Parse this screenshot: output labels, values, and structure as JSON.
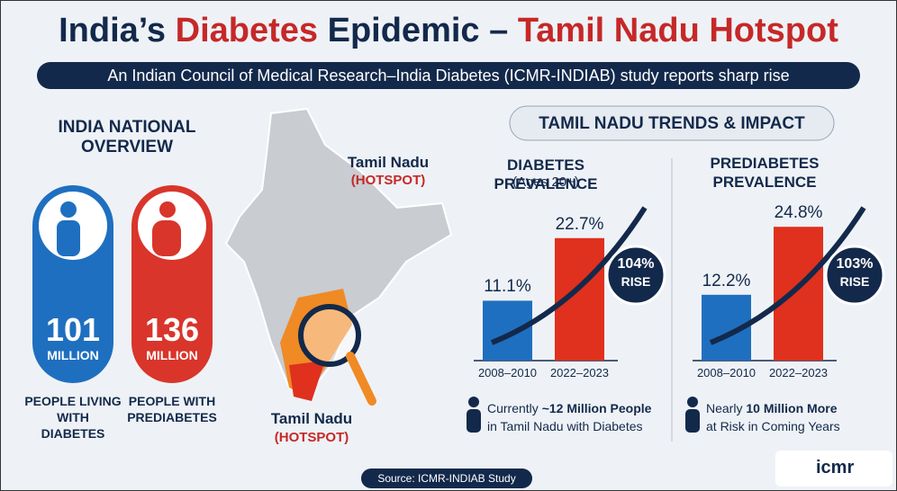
{
  "header": {
    "title_parts": [
      "India’s",
      "Diabetes",
      "Epidemic –",
      "Tamil Nadu Hotspot"
    ],
    "subtitle": "An Indian Council of Medical Research–India Diabetes (ICMR-INDIAB) study reports sharp rise"
  },
  "national": {
    "title": "INDIA NATIONAL OVERVIEW",
    "cards": [
      {
        "value": 101,
        "unit": "MILLION",
        "label": "PEOPLE LIVING WITH DIABETES"
      },
      {
        "value": 136,
        "unit": "MILLION",
        "label": "PEOPLE WITH PREDIABETES"
      }
    ]
  },
  "map": {
    "labels": [
      {
        "name": "Tamil Nadu",
        "tag": "(HOTSPOT)"
      },
      {
        "name": "Tamil Nadu",
        "tag": "(HOTSPOT)"
      }
    ]
  },
  "trends": {
    "title": "TAMIL NADU TRENDS & IMPACT",
    "charts": [
      {
        "title": "DIABETES PREVALENCE",
        "subtitle": "(Ages 20+)",
        "categories": [
          "2008–2010",
          "2022–2023"
        ],
        "values": [
          11.1,
          22.7
        ],
        "value_labels": [
          "11.1%",
          "22.7%"
        ],
        "colors": [
          "#1f6fc0",
          "#e0301e"
        ],
        "rise": "104%",
        "rise_label": "RISE",
        "note_parts": [
          "Currently",
          "~12 Million People",
          "in Tamil Nadu with Diabetes"
        ]
      },
      {
        "title": "PREDIABETES PREVALENCE",
        "categories": [
          "2008–2010",
          "2022–2023"
        ],
        "values": [
          12.2,
          24.8
        ],
        "value_labels": [
          "12.2%",
          "24.8%"
        ],
        "colors": [
          "#1f6fc0",
          "#e0301e"
        ],
        "rise": "103%",
        "rise_label": "RISE",
        "note_parts": [
          "Nearly",
          "10 Million More",
          "at Risk in Coming Years"
        ]
      }
    ]
  },
  "footer": {
    "source": "Source: ICMR-INDIAB Study",
    "logo": "icmr"
  }
}
